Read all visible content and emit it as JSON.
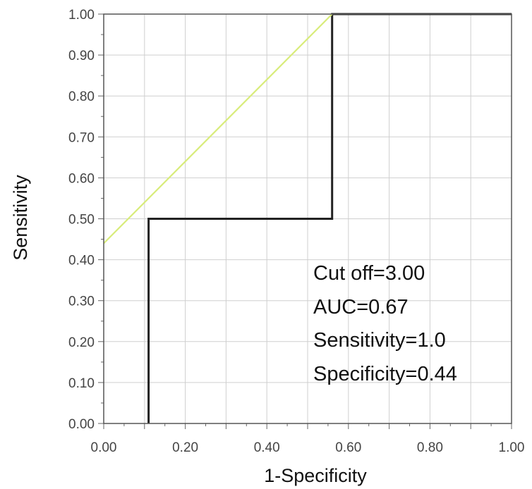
{
  "chart_data": {
    "type": "line",
    "title": "",
    "xlabel": "1-Specificity",
    "ylabel": "Sensitivity",
    "xlim": [
      0,
      1
    ],
    "ylim": [
      0,
      1
    ],
    "x_ticks": [
      "0.00",
      "0.20",
      "0.40",
      "0.60",
      "0.80",
      "1.00"
    ],
    "y_ticks": [
      "0.00",
      "0.10",
      "0.20",
      "0.30",
      "0.40",
      "0.50",
      "0.60",
      "0.70",
      "0.80",
      "0.90",
      "1.00"
    ],
    "grid": true,
    "series": [
      {
        "color": "#222222",
        "points": [
          [
            0.11,
            0.0
          ],
          [
            0.11,
            0.5
          ],
          [
            0.56,
            0.5
          ],
          [
            0.56,
            1.0
          ],
          [
            1.0,
            1.0
          ]
        ]
      },
      {
        "color": "#d8ec7a",
        "points": [
          [
            0.0,
            0.44
          ],
          [
            0.56,
            1.0
          ]
        ]
      }
    ],
    "annotations": [
      "Cut off=3.00",
      "AUC=0.67",
      "Sensitivity=1.0",
      "Specificity=0.44"
    ]
  }
}
